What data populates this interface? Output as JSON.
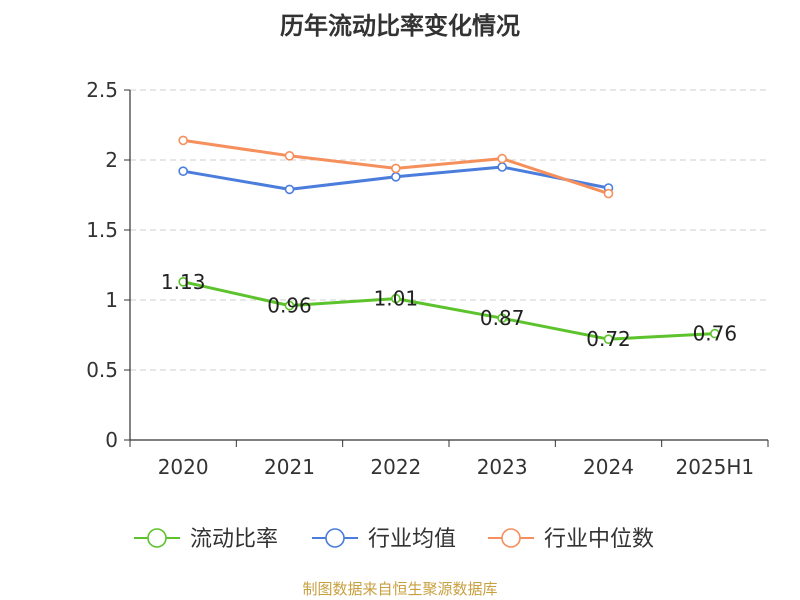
{
  "title": "历年流动比率变化情况",
  "source": "制图数据来自恒生聚源数据库",
  "chart_data": {
    "type": "line",
    "title": "历年流动比率变化情况",
    "categories": [
      "2020",
      "2021",
      "2022",
      "2023",
      "2024",
      "2025H1"
    ],
    "ylim": [
      0,
      2.5
    ],
    "yticks": [
      "0",
      "0.5",
      "1",
      "1.5",
      "2",
      "2.5"
    ],
    "grid": true,
    "legend_position": "bottom",
    "series": [
      {
        "name": "流动比率",
        "color": "#5cc32c",
        "labels": true,
        "values": [
          1.13,
          0.96,
          1.01,
          0.87,
          0.72,
          0.76
        ],
        "value_labels": [
          "1.13",
          "0.96",
          "1.01",
          "0.87",
          "0.72",
          "0.76"
        ]
      },
      {
        "name": "行业均值",
        "color": "#4b7ddd",
        "labels": false,
        "values": [
          1.92,
          1.79,
          1.88,
          1.95,
          1.8,
          null
        ]
      },
      {
        "name": "行业中位数",
        "color": "#f58f5b",
        "labels": false,
        "values": [
          2.14,
          2.03,
          1.94,
          2.01,
          1.76,
          null
        ]
      }
    ]
  }
}
